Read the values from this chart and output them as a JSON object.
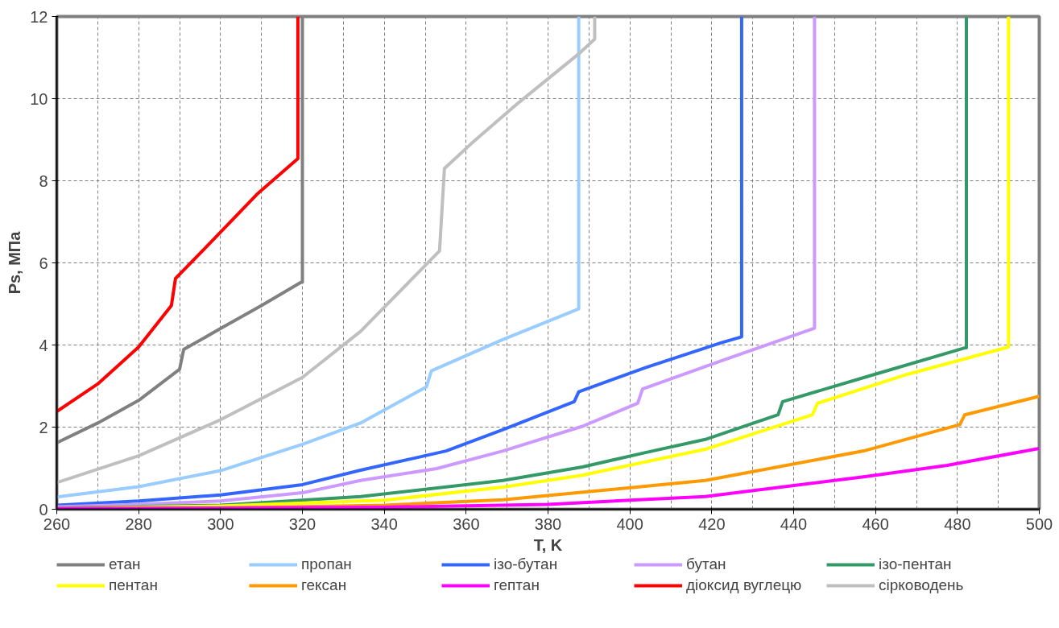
{
  "chart_data": {
    "type": "line",
    "xlabel": "T, K",
    "ylabel": "Ps, МПа",
    "xlim": [
      260,
      500
    ],
    "ylim": [
      0,
      12
    ],
    "xticks": [
      260,
      280,
      300,
      320,
      340,
      360,
      380,
      400,
      420,
      440,
      460,
      480,
      500
    ],
    "yticks": [
      0,
      2,
      4,
      6,
      8,
      10,
      12
    ],
    "grid": true,
    "legend": "bottom",
    "line_style": "solid",
    "marker": "none",
    "series": [
      {
        "name": "етан",
        "color": "#808080",
        "x": [
          260,
          270,
          280,
          290,
          291,
          300,
          310,
          319.7,
          320,
          320
        ],
        "values": [
          1.62,
          2.1,
          2.65,
          3.41,
          3.89,
          4.4,
          4.96,
          5.53,
          5.53,
          12
        ]
      },
      {
        "name": "пропан",
        "color": "#99ccff",
        "x": [
          260,
          280,
          300,
          320,
          334.2,
          350.3,
          351.5,
          368.9,
          387.5,
          387.5
        ],
        "values": [
          0.3,
          0.55,
          0.94,
          1.58,
          2.1,
          2.98,
          3.37,
          4.13,
          4.88,
          12
        ]
      },
      {
        "name": "ізо-бутан",
        "color": "#3366ff",
        "x": [
          260,
          280,
          300,
          320,
          334.2,
          355.1,
          369,
          386.4,
          387.5,
          403.8,
          422.2,
          427.3,
          427.3
        ],
        "values": [
          0.1,
          0.2,
          0.35,
          0.6,
          0.95,
          1.42,
          1.94,
          2.62,
          2.86,
          3.45,
          4.05,
          4.2,
          12
        ]
      },
      {
        "name": "бутан",
        "color": "#cc99ff",
        "x": [
          260,
          280,
          300,
          320,
          334.2,
          352.8,
          369,
          388.4,
          401.9,
          403.1,
          422.2,
          445.1,
          445.1
        ],
        "values": [
          0.06,
          0.12,
          0.2,
          0.4,
          0.7,
          0.99,
          1.42,
          2.02,
          2.58,
          2.93,
          3.61,
          4.41,
          12
        ]
      },
      {
        "name": "ізо-пентан",
        "color": "#339966",
        "x": [
          260,
          300,
          334.2,
          369,
          388.4,
          403.8,
          418.4,
          436.2,
          437.3,
          458.6,
          481.8,
          482.2,
          482.2
        ],
        "values": [
          0.03,
          0.1,
          0.31,
          0.7,
          1.03,
          1.38,
          1.7,
          2.3,
          2.62,
          3.25,
          3.93,
          3.93,
          12
        ]
      },
      {
        "name": "пентан",
        "color": "#ffff00",
        "x": [
          260,
          300,
          340,
          369,
          388.4,
          418.4,
          444.6,
          445.8,
          467.9,
          492.5,
          492.5
        ],
        "values": [
          0.02,
          0.08,
          0.22,
          0.54,
          0.83,
          1.46,
          2.3,
          2.58,
          3.29,
          3.95,
          12
        ]
      },
      {
        "name": "гексан",
        "color": "#ff9900",
        "x": [
          260,
          300,
          340,
          369,
          418.4,
          457.1,
          480.6,
          481.8,
          500
        ],
        "values": [
          0.01,
          0.03,
          0.1,
          0.23,
          0.7,
          1.42,
          2.06,
          2.3,
          2.75
        ]
      },
      {
        "name": "гептан",
        "color": "#ff00ff",
        "x": [
          260,
          300,
          340,
          380,
          418.4,
          457.1,
          477.5,
          500
        ],
        "values": [
          0.02,
          0.03,
          0.05,
          0.12,
          0.31,
          0.79,
          1.07,
          1.48
        ]
      },
      {
        "name": "діоксид вуглецю",
        "color": "#ff0000",
        "x": [
          260,
          270,
          280,
          288,
          289,
          298.1,
          308.9,
          318.9,
          318.9
        ],
        "values": [
          2.38,
          3.05,
          3.95,
          4.96,
          5.62,
          6.55,
          7.67,
          8.54,
          12
        ]
      },
      {
        "name": "сірководень",
        "color": "#bfbfbf",
        "x": [
          260,
          280,
          300,
          320,
          334.2,
          353.5,
          354.7,
          361.2,
          372.8,
          387.5,
          391.4,
          391.4
        ],
        "values": [
          0.65,
          1.3,
          2.18,
          3.21,
          4.33,
          6.29,
          8.3,
          8.9,
          9.9,
          11.09,
          11.45,
          12
        ]
      }
    ]
  }
}
